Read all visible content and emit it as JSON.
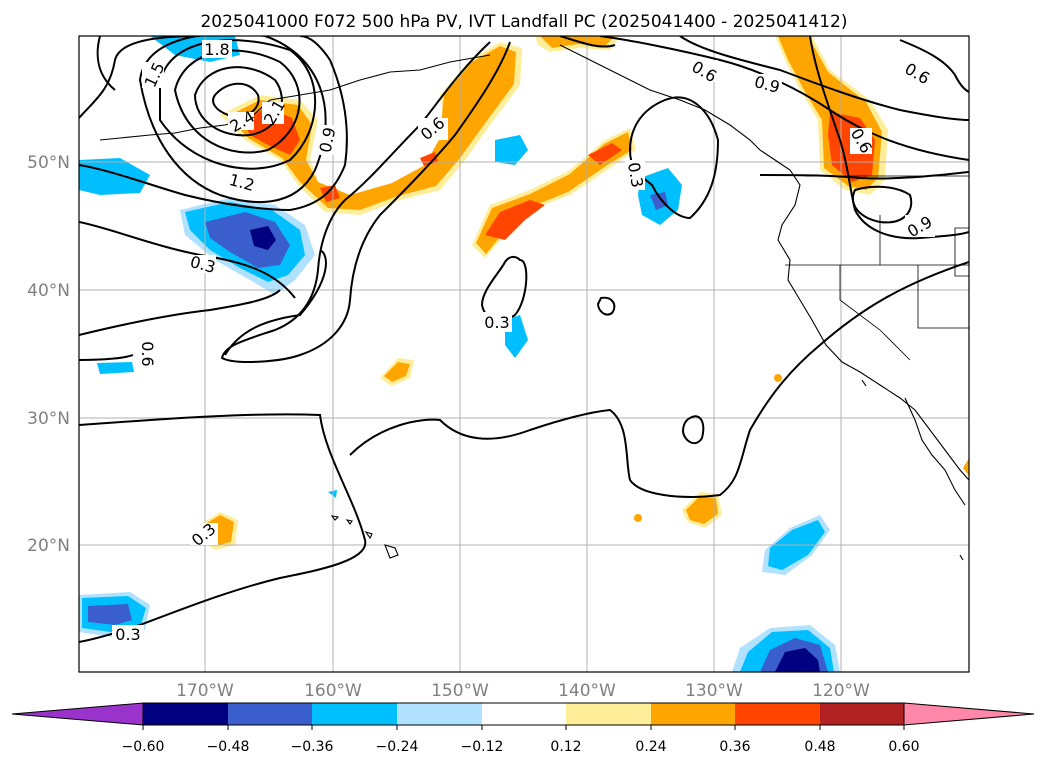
{
  "title": "2025041000 F072 500 hPa PV, IVT Landfall PC (2025041400 - 2025041412)",
  "lat_labels": [
    "50°N",
    "40°N",
    "30°N",
    "20°N"
  ],
  "lon_labels": [
    "170°W",
    "160°W",
    "150°W",
    "140°W",
    "130°W",
    "120°W"
  ],
  "colorbar": {
    "ticks": [
      "−0.60",
      "−0.48",
      "−0.36",
      "−0.24",
      "−0.12",
      "0.12",
      "0.24",
      "0.36",
      "0.48",
      "0.60"
    ],
    "colors": [
      "#9933cc",
      "#000080",
      "#3a5fcd",
      "#00bfff",
      "#b0e2ff",
      "#ffffff",
      "#ffee99",
      "#ffa500",
      "#ff4500",
      "#b22222",
      "#ff88aa"
    ]
  },
  "contour_labels": [
    "1.8",
    "1.5",
    "2.4",
    "2.1",
    "0.9",
    "1.2",
    "0.3",
    "0.6",
    "0.6",
    "0.3",
    "0.9",
    "0.6",
    "0.6",
    "0.9",
    "0.3",
    "0.6",
    "0.3",
    "0.3"
  ],
  "fill_colors": {
    "light_orange": "#ffee99",
    "orange": "#ffa500",
    "red_orange": "#ff4500",
    "light_blue": "#b0e2ff",
    "blue": "#00bfff",
    "royal": "#3a5fcd",
    "navy": "#000080"
  }
}
